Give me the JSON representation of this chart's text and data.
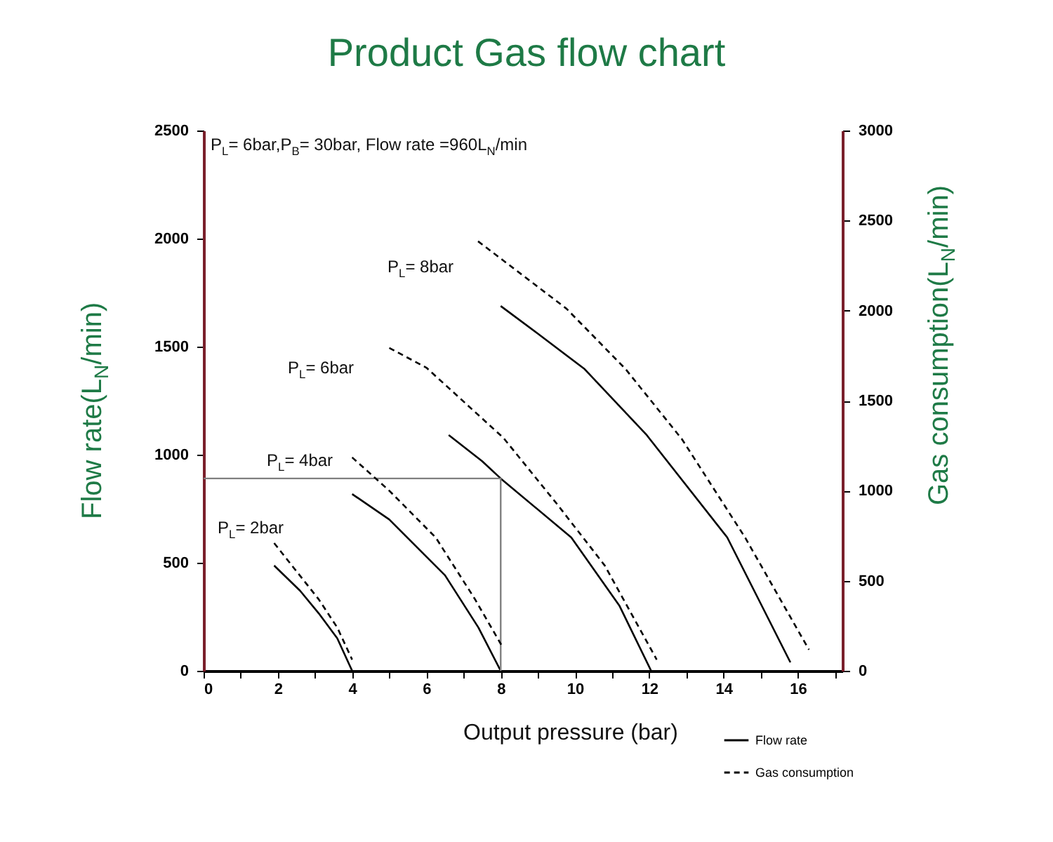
{
  "chart_data": {
    "type": "line",
    "title": "Product Gas flow chart",
    "xlabel": "Output pressure (bar)",
    "ylabel": "Flow rate(L$_{N}$/min)",
    "y2label": "Gas consumption(L$_{N}$/min)",
    "xlim": [
      0,
      17.2
    ],
    "xticks": [
      0,
      {
        "value": 1,
        "label": null
      },
      2,
      {
        "value": 3,
        "label": null
      },
      4,
      {
        "value": 5,
        "label": null
      },
      6,
      {
        "value": 7,
        "label": null
      },
      8,
      {
        "value": 9,
        "label": null
      },
      10,
      {
        "value": 11,
        "label": null
      },
      12,
      {
        "value": 13,
        "label": null
      },
      14,
      {
        "value": 15,
        "label": null
      },
      16,
      {
        "value": 17,
        "label": null
      }
    ],
    "ylim": [
      0,
      2500
    ],
    "yticks": [
      0,
      500,
      1000,
      1500,
      2000,
      2500
    ],
    "y2lim": [
      0,
      3000
    ],
    "y2ticks": [
      0,
      500,
      1000,
      1500,
      2000,
      2500,
      3000
    ],
    "grid": false,
    "legend": "bottom right",
    "series": [
      {
        "name": "Flow rate",
        "color": "#000000",
        "line_style": "solid",
        "x": [
          1.9,
          2.6,
          3.1,
          3.6,
          4.0,
          null,
          4.0,
          5.0,
          6.5,
          7.4,
          8.0,
          null,
          6.6,
          7.5,
          8.0,
          9.9,
          11.2,
          12.05,
          null,
          8.0,
          9.0,
          10.26,
          11.93,
          14.1,
          15.8
        ],
        "values": [
          487,
          370,
          266,
          150,
          0,
          null,
          818,
          700,
          442,
          200,
          0,
          null,
          1091,
          970,
          890,
          617,
          300,
          0,
          null,
          1688,
          1560,
          1396,
          1091,
          617,
          39
        ]
      },
      {
        "name": "Gas consumption",
        "color": "#000000",
        "line_style": "dashed",
        "axis": "y2",
        "x": [
          1.9,
          3.1,
          3.6,
          4.0,
          null,
          4.0,
          5.0,
          6.25,
          7.3,
          8.07,
          null,
          5.0,
          6.0,
          8.07,
          9.5,
          10.8,
          12.2,
          null,
          7.39,
          9.77,
          11.36,
          12.88,
          14.58,
          16.3
        ],
        "values": [
          709,
          397,
          240,
          62,
          null,
          1185,
          1000,
          740,
          400,
          125,
          null,
          1793,
          1683,
          1294,
          930,
          585,
          62,
          null,
          2385,
          2011,
          1676,
          1286,
          740,
          117
        ]
      },
      {
        "type": "line",
        "color": "#808080",
        "line_style": "solid",
        "x": [
          0,
          8,
          8
        ],
        "values": [
          890,
          890,
          0
        ]
      }
    ],
    "annotations": [
      "P$_{L}$= 6bar,P$_{B}$= 30bar, Flow rate =960L$_{N}$/min",
      "P$_{L}$= 8bar",
      "P$_{L}$= 6bar",
      "P$_{L}$= 4bar",
      "P$_{L}$= 2bar"
    ]
  }
}
